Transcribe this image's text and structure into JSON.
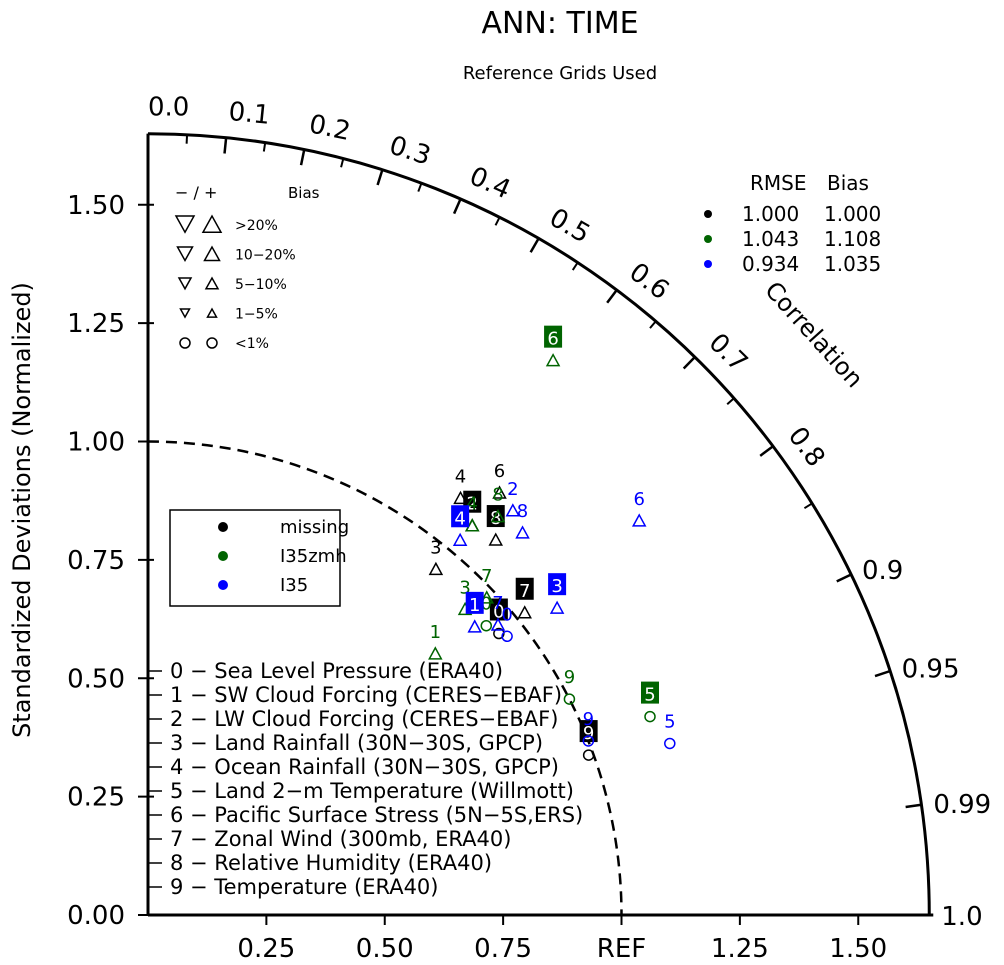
{
  "title": "ANN: TIME",
  "subtitle": "Reference Grids Used",
  "chart_data": {
    "type": "scatter",
    "diagram": "taylor",
    "ylabel": "Standardized Deviations (Normalized)",
    "correlation_label": "Correlation",
    "std_range": [
      0,
      1.65
    ],
    "y_ticks": [
      "0.00",
      "0.25",
      "0.50",
      "0.75",
      "1.00",
      "1.25",
      "1.50"
    ],
    "x_ticks": [
      "0.25",
      "0.50",
      "0.75",
      "REF",
      "1.25",
      "1.50"
    ],
    "corr_ticks_inner": [
      "0.0",
      "0.1",
      "0.2",
      "0.3",
      "0.4",
      "0.5",
      "0.6",
      "0.7",
      "0.8",
      "0.9"
    ],
    "corr_ticks_outer": [
      "0.9",
      "0.95",
      "0.99",
      "1.0"
    ],
    "ref_arc_std": 1.0,
    "bias_legend": {
      "header_minus_plus": "− / +",
      "header_bias": "Bias",
      "rows": [
        ">20%",
        "10−20%",
        "5−10%",
        "1−5%",
        "<1%"
      ]
    },
    "rmse_header": {
      "rmse": "RMSE",
      "bias": "Bias"
    },
    "series": [
      {
        "name": "missing",
        "color": "#000000",
        "rmse": "1.000",
        "bias": "1.000",
        "points": [
          {
            "id": "0",
            "r": 0.78,
            "std": 0.95,
            "sym": "circle",
            "boxed": true
          },
          {
            "id": "2",
            "r": 0.64,
            "std": 1.07,
            "sym": "tri-up",
            "boxed": true
          },
          {
            "id": "3",
            "r": 0.64,
            "std": 0.95,
            "sym": "tri-up",
            "boxed": false
          },
          {
            "id": "4",
            "r": 0.6,
            "std": 1.1,
            "sym": "tri-up",
            "boxed": false
          },
          {
            "id": "6",
            "r": 0.64,
            "std": 1.16,
            "sym": "tri-up",
            "boxed": false
          },
          {
            "id": "7",
            "r": 0.78,
            "std": 1.02,
            "sym": "tri-up",
            "boxed": true
          },
          {
            "id": "8",
            "r": 0.68,
            "std": 1.08,
            "sym": "tri-up",
            "boxed": true
          },
          {
            "id": "9",
            "r": 0.94,
            "std": 0.99,
            "sym": "circle",
            "boxed": true
          }
        ]
      },
      {
        "name": "I35zmh",
        "color": "#006400",
        "rmse": "1.043",
        "bias": "1.108",
        "points": [
          {
            "id": "1",
            "r": 0.74,
            "std": 0.82,
            "sym": "tri-up",
            "boxed": false
          },
          {
            "id": "3",
            "r": 0.72,
            "std": 0.93,
            "sym": "tri-up",
            "boxed": false
          },
          {
            "id": "4",
            "r": 0.64,
            "std": 1.07,
            "sym": "tri-up",
            "boxed": false
          },
          {
            "id": "5",
            "r": 0.93,
            "std": 1.14,
            "sym": "circle",
            "boxed": true
          },
          {
            "id": "6",
            "r": 0.59,
            "std": 1.45,
            "sym": "tri-up",
            "boxed": true
          },
          {
            "id": "7",
            "r": 0.73,
            "std": 0.98,
            "sym": "tri-up",
            "boxed": false
          },
          {
            "id": "8",
            "r": 0.66,
            "std": 1.12,
            "sym": "tri-up",
            "boxed": false
          },
          {
            "id": "9",
            "r": 0.89,
            "std": 1.0,
            "sym": "circle",
            "boxed": false
          },
          {
            "id": "0",
            "r": 0.76,
            "std": 0.94,
            "sym": "circle",
            "boxed": false
          }
        ]
      },
      {
        "name": "I35",
        "color": "#0000ff",
        "rmse": "0.934",
        "bias": "1.035",
        "points": [
          {
            "id": "1",
            "r": 0.75,
            "std": 0.92,
            "sym": "tri-up",
            "boxed": true
          },
          {
            "id": "2",
            "r": 0.67,
            "std": 1.15,
            "sym": "tri-up",
            "boxed": false
          },
          {
            "id": "3",
            "r": 0.8,
            "std": 1.08,
            "sym": "tri-up",
            "boxed": true
          },
          {
            "id": "4",
            "r": 0.64,
            "std": 1.03,
            "sym": "tri-up",
            "boxed": true
          },
          {
            "id": "5",
            "r": 0.95,
            "std": 1.16,
            "sym": "circle",
            "boxed": false
          },
          {
            "id": "6",
            "r": 0.78,
            "std": 1.33,
            "sym": "tri-up",
            "boxed": false
          },
          {
            "id": "7",
            "r": 0.77,
            "std": 0.96,
            "sym": "tri-up",
            "boxed": false
          },
          {
            "id": "8",
            "r": 0.7,
            "std": 1.13,
            "sym": "tri-up",
            "boxed": false
          },
          {
            "id": "9",
            "r": 0.93,
            "std": 1.0,
            "sym": "circle",
            "boxed": false
          },
          {
            "id": "0",
            "r": 0.79,
            "std": 0.96,
            "sym": "circle",
            "boxed": false
          }
        ]
      }
    ],
    "variables": [
      "0 − Sea Level Pressure (ERA40)",
      "1 − SW Cloud Forcing (CERES−EBAF)",
      "2 − LW Cloud Forcing (CERES−EBAF)",
      "3 − Land Rainfall (30N−30S, GPCP)",
      "4 − Ocean Rainfall (30N−30S, GPCP)",
      "5 − Land 2−m Temperature (Willmott)",
      "6 − Pacific Surface Stress (5N−5S,ERS)",
      "7 − Zonal Wind (300mb, ERA40)",
      "8 − Relative Humidity (ERA40)",
      "9 − Temperature (ERA40)"
    ]
  }
}
